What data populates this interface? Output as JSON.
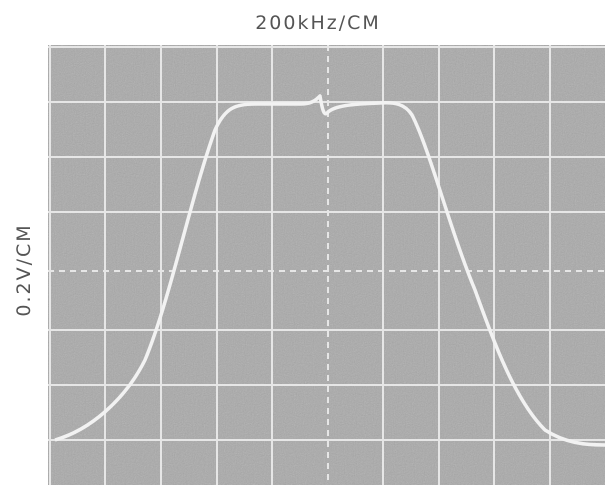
{
  "header": {
    "title": "200kHz/CM"
  },
  "axis": {
    "y_label": "0.2V/CM"
  }
}
